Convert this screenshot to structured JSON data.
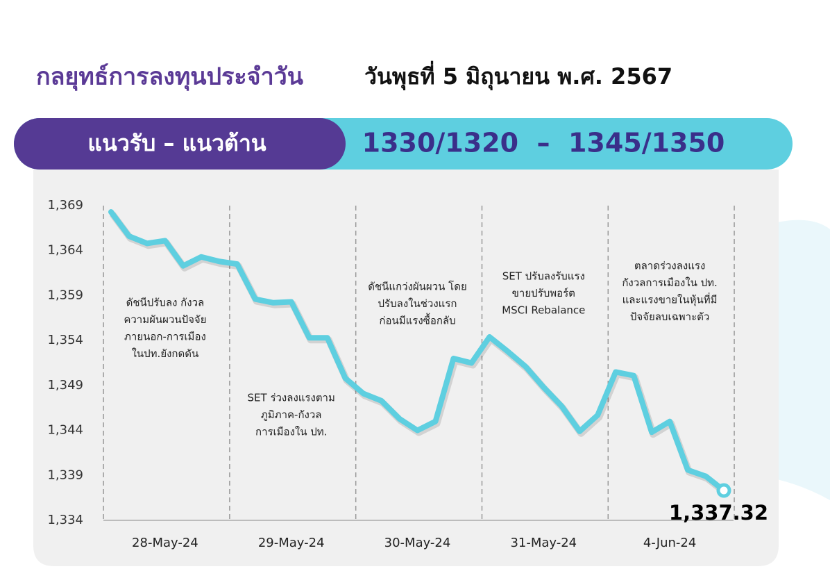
{
  "header": {
    "title": "กลยุทธ์การลงทุนประจำวัน",
    "date": "วันพุธที่ 5 มิถุนายน พ.ศ. 2567"
  },
  "banner": {
    "label": "แนวรับ – แนวต้าน",
    "value": "1330/1320  –  1345/1350"
  },
  "chart_data": {
    "type": "line",
    "categories": [
      null,
      null,
      null,
      "28-May-24",
      null,
      null,
      null,
      null,
      null,
      null,
      "29-May-24",
      null,
      null,
      null,
      null,
      null,
      null,
      "30-May-24",
      null,
      null,
      null,
      null,
      null,
      null,
      "31-May-24",
      null,
      null,
      null,
      null,
      null,
      null,
      "4-Jun-24",
      null,
      null,
      null
    ],
    "values": [
      1368.3,
      1365.6,
      1364.8,
      1365.1,
      1362.3,
      1363.3,
      1362.8,
      1362.5,
      1358.6,
      1358.2,
      1358.3,
      1354.3,
      1354.3,
      1349.8,
      1348.1,
      1347.3,
      1345.3,
      1344.0,
      1345.0,
      1352.0,
      1351.5,
      1354.4,
      1352.8,
      1351.1,
      1348.8,
      1346.7,
      1343.9,
      1345.7,
      1350.5,
      1350.1,
      1343.8,
      1345.0,
      1339.6,
      1338.9,
      1337.32
    ],
    "value_labels": [
      null,
      null,
      null,
      null,
      null,
      null,
      null,
      null,
      null,
      null,
      null,
      null,
      null,
      null,
      null,
      null,
      null,
      null,
      null,
      null,
      null,
      null,
      null,
      null,
      null,
      null,
      null,
      null,
      null,
      null,
      null,
      null,
      null,
      null,
      "1,337.32"
    ],
    "color": "#5ecfe0",
    "ylim": [
      1334,
      1369
    ],
    "yticks": [
      {
        "value": 1334,
        "label": "1,334"
      },
      {
        "value": 1339,
        "label": "1,339"
      },
      {
        "value": 1344,
        "label": "1,344"
      },
      {
        "value": 1349,
        "label": "1,349"
      },
      {
        "value": 1354,
        "label": "1,354"
      },
      {
        "value": 1359,
        "label": "1,359"
      },
      {
        "value": 1364,
        "label": "1,364"
      },
      {
        "value": 1369,
        "label": "1,369"
      }
    ],
    "annotations": [
      [
        "ดัชนีปรับลง กังวล",
        "ความผันผวนปัจจัย",
        "ภายนอก-การเมือง",
        "ในปท.ยังกดดัน"
      ],
      [
        "SET ร่วงลงแรงตาม",
        "ภูมิภาค-กังวล",
        "การเมืองใน ปท."
      ],
      [
        "ดัชนีแกว่งผันผวน โดย",
        "ปรับลงในช่วงแรก",
        "ก่อนมีแรงซื้อกลับ"
      ],
      [
        "SET ปรับลงรับแรง",
        "ขายปรับพอร์ต",
        "MSCI Rebalance"
      ],
      [
        "ตลาดร่วงลงแรง",
        "กังวลการเมืองใน ปท.",
        "และแรงขายในหุ้นที่มี",
        "ปัจจัยลบเฉพาะตัว"
      ]
    ]
  }
}
